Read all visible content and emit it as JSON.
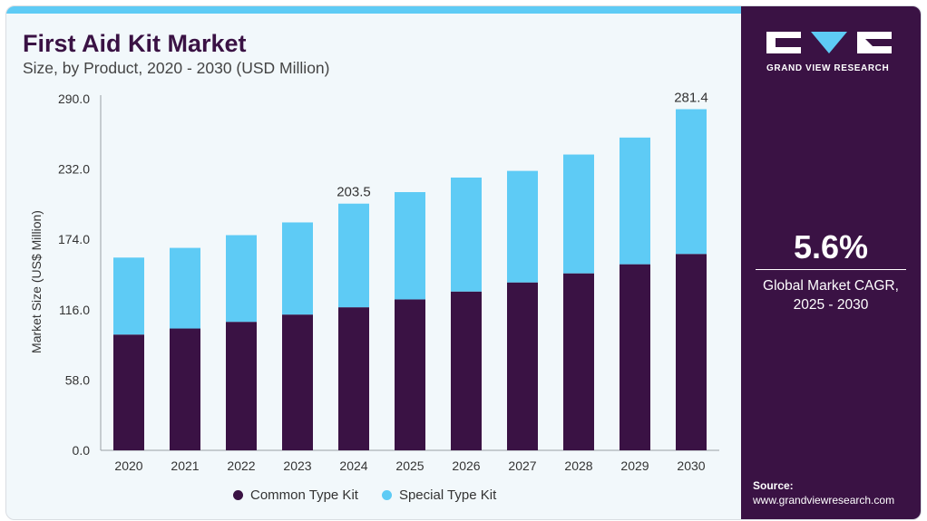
{
  "header": {
    "title": "First Aid Kit Market",
    "subtitle": "Size, by Product, 2020 - 2030 (USD Million)"
  },
  "brand": {
    "name": "GRAND VIEW RESEARCH",
    "primary_color": "#3a1244",
    "accent_color": "#5ecbf5"
  },
  "cagr": {
    "value": "5.6%",
    "label_line1": "Global Market CAGR,",
    "label_line2": "2025 - 2030"
  },
  "source": {
    "label": "Source:",
    "url": "www.grandviewresearch.com"
  },
  "chart_data": {
    "type": "bar",
    "stacked": true,
    "categories": [
      "2020",
      "2021",
      "2022",
      "2023",
      "2024",
      "2025",
      "2026",
      "2027",
      "2028",
      "2029",
      "2030"
    ],
    "series": [
      {
        "name": "Common Type Kit",
        "color": "#3a1244",
        "values": [
          95.5,
          100.5,
          106,
          112,
          118,
          124.5,
          131,
          138.5,
          146,
          153.5,
          162
        ]
      },
      {
        "name": "Special Type Kit",
        "color": "#5ecbf5",
        "values": [
          63.5,
          66.5,
          71.5,
          76,
          85.5,
          88.5,
          94,
          92,
          98,
          104.5,
          119.4
        ]
      }
    ],
    "ylabel": "Market Size (US$ Million)",
    "xlabel": "",
    "ylim": [
      0,
      290
    ],
    "yticks": [
      "0.0",
      "58.0",
      "116.0",
      "174.0",
      "232.0",
      "290.0"
    ],
    "annotations": [
      {
        "category": "2024",
        "text": "203.5"
      },
      {
        "category": "2030",
        "text": "281.4"
      }
    ],
    "legend_position": "bottom"
  }
}
